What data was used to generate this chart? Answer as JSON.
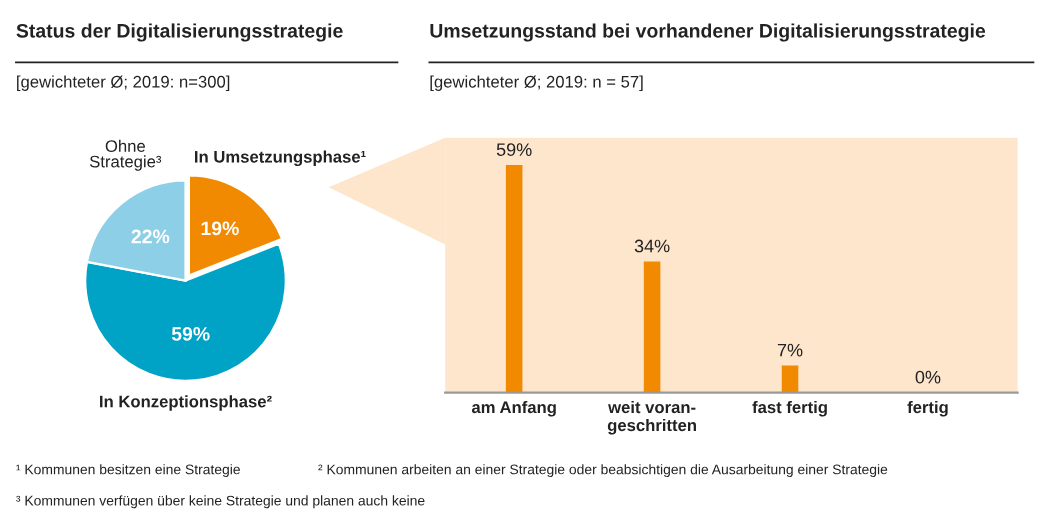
{
  "chart_data": [
    {
      "type": "pie",
      "title": "Status der Digitalisierungsstrategie",
      "subtitle": "[gewichteter Ø; 2019: n=300]",
      "categories": [
        "In Umsetzungsphase¹",
        "In Konzeptionsphase²",
        "Ohne Strategie³"
      ],
      "values": [
        19,
        59,
        22
      ],
      "colors": [
        "#f18a00",
        "#00a2c6",
        "#8ccfe6"
      ],
      "value_labels": [
        "19%",
        "59%",
        "22%"
      ],
      "legend": false,
      "annotations": [
        "¹ Kommunen besitzen eine Strategie",
        "² Kommunen arbeiten an einer Strategie oder beabsichtigen die Ausarbeitung einer Strategie",
        "³ Kommunen verfügen über keine Strategie und planen auch keine"
      ]
    },
    {
      "type": "bar",
      "title": "Umsetzungsstand bei vorhandener Digitalisierungsstrategie",
      "subtitle": "[gewichteter Ø; 2019: n = 57]",
      "categories": [
        "am Anfang",
        "weit voran-\ngeschritten",
        "fast fertig",
        "fertig"
      ],
      "values": [
        59,
        34,
        7,
        0
      ],
      "color": "#f18a00",
      "data_labels": true,
      "value_labels": [
        "59%",
        "34%",
        "7%",
        "0%"
      ],
      "grid": false,
      "legend": false
    }
  ]
}
